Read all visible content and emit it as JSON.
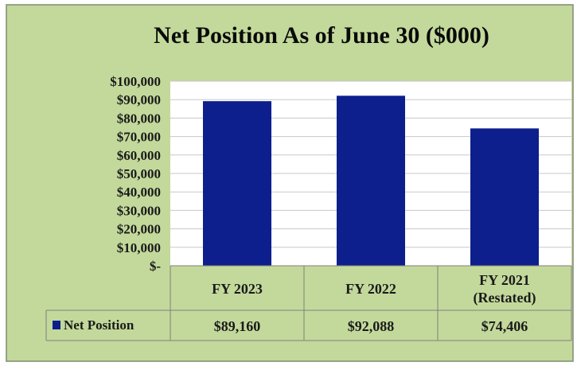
{
  "colors": {
    "background": "#c3d99b",
    "plot_area": "#ffffff",
    "bar": "#0c1f8c",
    "gridline": "#c8c8c8",
    "table_border": "#808080",
    "outer_border": "#7f8a70",
    "text": "#1a1a1a",
    "title_text": "#0a0a0a"
  },
  "chart_data": {
    "type": "bar",
    "title": "Net Position As of June 30  ($000)",
    "categories": [
      {
        "line1": "FY 2023",
        "line2": ""
      },
      {
        "line1": "FY 2022",
        "line2": ""
      },
      {
        "line1": "FY 2021",
        "line2": "(Restated)"
      }
    ],
    "series": [
      {
        "name": "Net Position",
        "values": [
          89160,
          92088,
          74406
        ]
      }
    ],
    "value_labels": [
      "$89,160",
      "$92,088",
      "$74,406"
    ],
    "y_ticks": [
      "$-",
      "$10,000",
      "$20,000",
      "$30,000",
      "$40,000",
      "$50,000",
      "$60,000",
      "$70,000",
      "$80,000",
      "$90,000",
      "$100,000"
    ],
    "ylim": [
      0,
      100000
    ],
    "grid": true,
    "legend": "data-table-left"
  }
}
